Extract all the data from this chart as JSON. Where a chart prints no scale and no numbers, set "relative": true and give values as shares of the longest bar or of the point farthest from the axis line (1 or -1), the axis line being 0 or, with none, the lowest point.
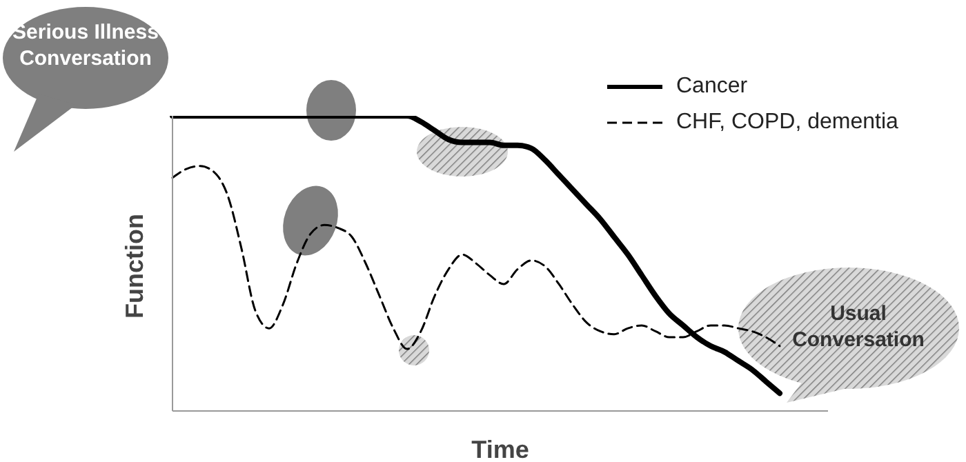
{
  "chart_data": {
    "type": "line",
    "relative": true,
    "xlabel": "Time",
    "ylabel": "Function",
    "legend": "top right",
    "grid": false,
    "marker": "none",
    "annotations": [
      "Serious Illness Conversation",
      "Usual Conversation"
    ],
    "categories": [
      null,
      null,
      null,
      null,
      null,
      null,
      null,
      null,
      null,
      null,
      null,
      null,
      null,
      null,
      null,
      null,
      null,
      null,
      null,
      null,
      null,
      null,
      null,
      null,
      null,
      null,
      null,
      null,
      null,
      null,
      null,
      null,
      null,
      null,
      null,
      null,
      null,
      null,
      null,
      null,
      null,
      null,
      null,
      null,
      null
    ],
    "series": [
      {
        "name": "Cancer",
        "color": "#000000",
        "line_style": "solid",
        "values": [
          1,
          1,
          1,
          1,
          1,
          1,
          1,
          1,
          1,
          1,
          1,
          1,
          1,
          1,
          1,
          1,
          1,
          1,
          0.98,
          0.95,
          0.92,
          0.91,
          0.91,
          0.91,
          0.9,
          0.9,
          0.89,
          0.85,
          0.8,
          0.75,
          0.7,
          0.65,
          0.59,
          0.53,
          0.46,
          0.39,
          0.33,
          0.29,
          0.25,
          0.22,
          0.2,
          0.17,
          0.14,
          0.1,
          0.06
        ]
      },
      {
        "name": "CHF, COPD, dementia",
        "color": "#000000",
        "line_style": "dashed",
        "values": [
          0.79,
          0.82,
          0.83,
          0.81,
          0.73,
          0.55,
          0.34,
          0.28,
          0.36,
          0.5,
          0.6,
          0.63,
          0.62,
          0.59,
          0.5,
          0.39,
          0.28,
          0.21,
          0.27,
          0.39,
          0.48,
          0.53,
          0.5,
          0.46,
          0.43,
          0.48,
          0.51,
          0.49,
          0.43,
          0.36,
          0.3,
          0.27,
          0.26,
          0.28,
          0.29,
          0.27,
          0.25,
          0.25,
          0.27,
          0.29,
          0.29,
          0.28,
          0.27,
          0.25,
          0.22
        ]
      }
    ]
  }
}
